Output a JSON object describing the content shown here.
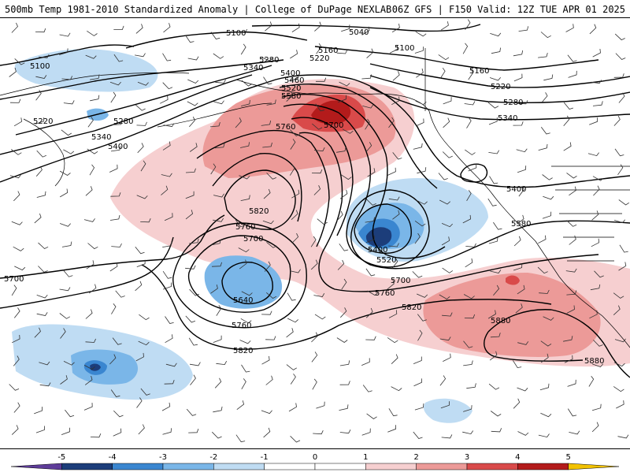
{
  "header": {
    "left_title": "500mb Temp 1981-2010 Standardized Anomaly | College of DuPage NEXLAB",
    "right_title": "06Z GFS | F150 Valid: 12Z TUE APR 01 2025"
  },
  "colors": {
    "anom_neg5": "#5e3c99",
    "anom_neg4": "#1c3d7a",
    "anom_neg3": "#3a86d0",
    "anom_neg2": "#7ab6e8",
    "anom_neg1": "#bfdcf3",
    "anom_0": "#ffffff",
    "anom_pos1": "#f6cfd0",
    "anom_pos2": "#ec9a98",
    "anom_pos3": "#d94a4a",
    "anom_pos4": "#b31b1b",
    "anom_pos5": "#7a0c0c",
    "anom_pos6": "#f2c200"
  },
  "colorbar": {
    "ticks": [
      "-5",
      "-4",
      "-3",
      "-2",
      "-1",
      "0",
      "1",
      "2",
      "3",
      "4",
      "5"
    ]
  },
  "contour_labels": {
    "l5100a": "5100",
    "l5040": "5040",
    "l5100b": "5100",
    "l5160a": "5160",
    "l5280a": "5280",
    "l5220a": "5220",
    "l5340a": "5340",
    "l5400a": "5400",
    "l5460": "5460",
    "l5520a": "5520",
    "l5580a": "5580",
    "l5700a": "5700",
    "l5760a": "5760",
    "l5100c": "5100",
    "l5220b": "5220",
    "l5280b": "5280",
    "l5340b": "5340",
    "l5400b": "5400",
    "l5160b": "5160",
    "l5220c": "5220",
    "l5280c": "5280",
    "l5340c": "5340",
    "l5400c": "5400",
    "l5580b": "5580",
    "l5820a": "5820",
    "l5760b": "5760",
    "l5700b": "5700",
    "l5640": "5640",
    "l5700c": "5700",
    "l5760c": "5760",
    "l5820b": "5820",
    "l5400d": "5400",
    "l5520b": "5520",
    "l5700d": "5700",
    "l5760d": "5760",
    "l5820c": "5820",
    "l5880a": "5880",
    "l5880b": "5880"
  }
}
